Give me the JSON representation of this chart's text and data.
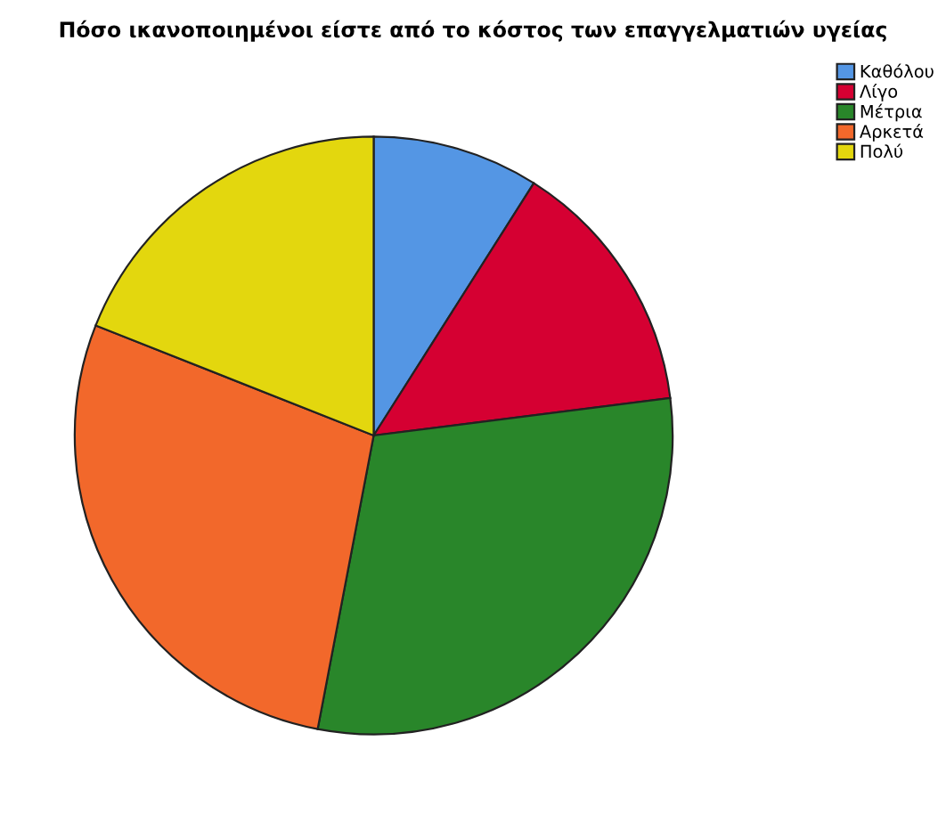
{
  "chart_data": {
    "type": "pie",
    "title": "Πόσο ικανοποιημένοι είστε από το κόστος των επαγγελματιών υγείας",
    "categories": [
      "Καθόλου",
      "Λίγο",
      "Μέτρια",
      "Αρκετά",
      "Πολύ"
    ],
    "values": [
      9,
      14,
      30,
      28,
      19
    ],
    "colors": [
      "#5496e4",
      "#d50032",
      "#29862a",
      "#f2682b",
      "#e3d70e"
    ],
    "legend": "top right"
  }
}
